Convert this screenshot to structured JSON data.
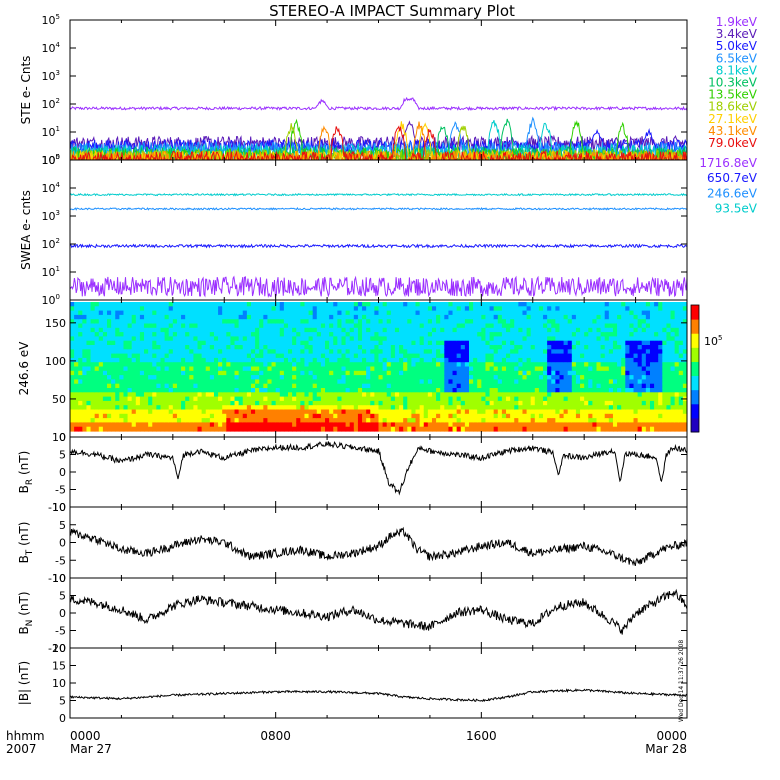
{
  "chart_data": {
    "type": "line",
    "title": "STEREO-A IMPACT Summary Plot",
    "x_axis": {
      "range_hours": [
        0,
        24
      ],
      "ticks": [
        {
          "hour": 0,
          "time": "0000",
          "date": "Mar 27"
        },
        {
          "hour": 8,
          "time": "0800",
          "date": ""
        },
        {
          "hour": 16,
          "time": "1600",
          "date": ""
        },
        {
          "hour": 24,
          "time": "0000",
          "date": "Mar 28"
        }
      ],
      "corner_label_top": "hhmm",
      "corner_label_bottom": "2007"
    },
    "side_stamp": "Wed Dec 14 11:37:26 2008",
    "panels": [
      {
        "id": "ste",
        "type": "line",
        "ylabel": "STE e- Cnts",
        "yscale": "log",
        "ylim": [
          1,
          100000
        ],
        "yticks": [
          {
            "value": 1,
            "base": "10",
            "exp": "0"
          },
          {
            "value": 10,
            "base": "10",
            "exp": "1"
          },
          {
            "value": 100,
            "base": "10",
            "exp": "2"
          },
          {
            "value": 1000,
            "base": "10",
            "exp": "3"
          },
          {
            "value": 10000,
            "base": "10",
            "exp": "4"
          },
          {
            "value": 100000,
            "base": "10",
            "exp": "5"
          }
        ],
        "series": [
          {
            "name": "1.9keV",
            "color": "#9b30ff",
            "level": 70,
            "noise": 0.05,
            "spikes": [
              [
                9.8,
                90
              ],
              [
                13.1,
                140
              ],
              [
                13.3,
                120
              ]
            ]
          },
          {
            "name": "3.4keV",
            "color": "#5a1ab8",
            "level": 4,
            "noise": 0.25,
            "spikes": [
              [
                13.2,
                25
              ]
            ]
          },
          {
            "name": "5.0keV",
            "color": "#1a1aff",
            "level": 3,
            "noise": 0.25,
            "spikes": [
              [
                20.5,
                12
              ],
              [
                22.5,
                10
              ]
            ]
          },
          {
            "name": "6.5keV",
            "color": "#1e90ff",
            "level": 2.2,
            "noise": 0.3,
            "spikes": [
              [
                15.0,
                25
              ],
              [
                18.0,
                30
              ]
            ]
          },
          {
            "name": "8.1keV",
            "color": "#00cccc",
            "level": 1.8,
            "noise": 0.3,
            "spikes": [
              [
                16.5,
                30
              ],
              [
                18.5,
                25
              ]
            ]
          },
          {
            "name": "10.3keV",
            "color": "#00c060",
            "level": 1.5,
            "noise": 0.3,
            "spikes": [
              [
                14.5,
                20
              ],
              [
                17.0,
                30
              ]
            ]
          },
          {
            "name": "13.5keV",
            "color": "#30d000",
            "level": 1.3,
            "noise": 0.3,
            "spikes": [
              [
                8.8,
                30
              ],
              [
                19.7,
                30
              ],
              [
                21.5,
                20
              ]
            ]
          },
          {
            "name": "18.6keV",
            "color": "#a0d000",
            "level": 1.2,
            "noise": 0.3,
            "spikes": [
              [
                8.6,
                20
              ],
              [
                15.3,
                20
              ]
            ]
          },
          {
            "name": "27.1keV",
            "color": "#ffd000",
            "level": 1.1,
            "noise": 0.3,
            "spikes": [
              [
                12.9,
                25
              ],
              [
                13.8,
                30
              ]
            ]
          },
          {
            "name": "43.1keV",
            "color": "#ff8c00",
            "level": 1.05,
            "noise": 0.3,
            "spikes": [
              [
                9.9,
                20
              ],
              [
                13.6,
                25
              ]
            ]
          },
          {
            "name": "79.0keV",
            "color": "#e81010",
            "level": 1.02,
            "noise": 0.3,
            "spikes": [
              [
                10.4,
                20
              ],
              [
                12.8,
                20
              ],
              [
                14.0,
                15
              ]
            ]
          }
        ]
      },
      {
        "id": "swea",
        "type": "line",
        "ylabel": "SWEA e- cnts",
        "yscale": "log",
        "ylim": [
          1,
          100000
        ],
        "yticks": [
          {
            "value": 1,
            "base": "10",
            "exp": "0"
          },
          {
            "value": 10,
            "base": "10",
            "exp": "1"
          },
          {
            "value": 100,
            "base": "10",
            "exp": "2"
          },
          {
            "value": 1000,
            "base": "10",
            "exp": "3"
          },
          {
            "value": 10000,
            "base": "10",
            "exp": "4"
          },
          {
            "value": 100000,
            "base": "10",
            "exp": "5"
          }
        ],
        "series": [
          {
            "name": "1716.8eV",
            "color": "#9b30ff",
            "level": 3,
            "noise": 0.35,
            "spikes": []
          },
          {
            "name": "650.7eV",
            "color": "#1a1aff",
            "level": 85,
            "noise": 0.05,
            "spikes": []
          },
          {
            "name": "246.6eV",
            "color": "#1e90ff",
            "level": 1800,
            "noise": 0.03,
            "spikes": []
          },
          {
            "name": "93.5eV",
            "color": "#00cccc",
            "level": 5800,
            "noise": 0.03,
            "spikes": []
          }
        ]
      },
      {
        "id": "pad",
        "type": "heatmap",
        "ylabel": "246.6 eV",
        "ylim": [
          0,
          180
        ],
        "yticks": [
          0,
          50,
          100,
          150
        ],
        "colorbar_label_base": "10",
        "colorbar_label_exp": "5",
        "colormap": [
          "#2000c0",
          "#0000ff",
          "#0080ff",
          "#00e0ff",
          "#00ff80",
          "#a0ff00",
          "#ffff00",
          "#ff8000",
          "#ff0000"
        ]
      },
      {
        "id": "br",
        "type": "line",
        "ylabel_base": "B",
        "ylabel_sub": "R",
        "ylabel_unit": " (nT)",
        "ylim": [
          -10,
          10
        ],
        "yticks": [
          -10,
          -5,
          0,
          5,
          10
        ],
        "profile": [
          [
            0,
            6
          ],
          [
            1,
            5
          ],
          [
            2,
            3
          ],
          [
            3,
            5
          ],
          [
            4,
            4
          ],
          [
            5,
            6
          ],
          [
            6,
            4
          ],
          [
            7,
            6
          ],
          [
            8,
            7
          ],
          [
            9,
            7
          ],
          [
            10,
            8
          ],
          [
            11,
            7
          ],
          [
            12,
            6
          ],
          [
            12.4,
            -3
          ],
          [
            12.8,
            -6
          ],
          [
            13.2,
            2
          ],
          [
            13.6,
            7
          ],
          [
            14,
            6
          ],
          [
            15,
            5
          ],
          [
            16,
            4
          ],
          [
            17,
            6
          ],
          [
            18,
            7
          ],
          [
            19,
            5
          ],
          [
            20,
            4
          ],
          [
            21,
            6
          ],
          [
            22,
            5
          ],
          [
            23,
            4
          ],
          [
            23.5,
            7
          ],
          [
            24,
            6
          ]
        ],
        "dips": [
          [
            4.2,
            -2
          ],
          [
            19.0,
            -1
          ],
          [
            21.4,
            -3
          ],
          [
            23.0,
            -3
          ]
        ],
        "noise": 0.8
      },
      {
        "id": "bt",
        "type": "line",
        "ylabel_base": "B",
        "ylabel_sub": "T",
        "ylabel_unit": " (nT)",
        "ylim": [
          -10,
          10
        ],
        "yticks": [
          -10,
          -5,
          0,
          5,
          10
        ],
        "profile": [
          [
            0,
            3
          ],
          [
            1,
            1
          ],
          [
            2,
            -2
          ],
          [
            3,
            -3
          ],
          [
            4,
            -1
          ],
          [
            5,
            1
          ],
          [
            6,
            0
          ],
          [
            7,
            -4
          ],
          [
            8,
            -3
          ],
          [
            9,
            -2
          ],
          [
            10,
            -4
          ],
          [
            11,
            -3
          ],
          [
            12,
            -1
          ],
          [
            12.5,
            2
          ],
          [
            13,
            3
          ],
          [
            13.5,
            -2
          ],
          [
            14,
            -4
          ],
          [
            15,
            -3
          ],
          [
            16,
            -1
          ],
          [
            17,
            0
          ],
          [
            18,
            -3
          ],
          [
            19,
            -2
          ],
          [
            20,
            -1
          ],
          [
            21,
            -3
          ],
          [
            22,
            -6
          ],
          [
            23,
            -2
          ],
          [
            24,
            0
          ]
        ],
        "dips": [],
        "noise": 1.2
      },
      {
        "id": "bn",
        "type": "line",
        "ylabel_base": "B",
        "ylabel_sub": "N",
        "ylabel_unit": " (nT)",
        "ylim": [
          -10,
          10
        ],
        "yticks": [
          -10,
          -5,
          0,
          5,
          10
        ],
        "profile": [
          [
            0,
            4
          ],
          [
            1,
            3
          ],
          [
            2,
            1
          ],
          [
            3,
            -2
          ],
          [
            4,
            2
          ],
          [
            5,
            4
          ],
          [
            6,
            3
          ],
          [
            7,
            2
          ],
          [
            8,
            1
          ],
          [
            9,
            0
          ],
          [
            10,
            -1
          ],
          [
            11,
            1
          ],
          [
            12,
            -2
          ],
          [
            13,
            -3
          ],
          [
            14,
            -4
          ],
          [
            15,
            0
          ],
          [
            16,
            1
          ],
          [
            17,
            -2
          ],
          [
            18,
            -3
          ],
          [
            19,
            2
          ],
          [
            20,
            3
          ],
          [
            21,
            -2
          ],
          [
            21.5,
            -5
          ],
          [
            22,
            0
          ],
          [
            23,
            4
          ],
          [
            23.5,
            6
          ],
          [
            24,
            2
          ]
        ],
        "dips": [],
        "noise": 1.3
      },
      {
        "id": "bmag",
        "type": "line",
        "ylabel_base": "|B|",
        "ylabel_sub": "",
        "ylabel_unit": " (nT)",
        "ylim": [
          0,
          20
        ],
        "yticks": [
          0,
          5,
          10,
          15,
          20
        ],
        "profile": [
          [
            0,
            6
          ],
          [
            2,
            5.5
          ],
          [
            4,
            6.5
          ],
          [
            6,
            7
          ],
          [
            8,
            7.5
          ],
          [
            10,
            7.5
          ],
          [
            12,
            7
          ],
          [
            13,
            6
          ],
          [
            14,
            5.5
          ],
          [
            16,
            5
          ],
          [
            17,
            6
          ],
          [
            18,
            7.5
          ],
          [
            20,
            8
          ],
          [
            22,
            7
          ],
          [
            24,
            6.5
          ]
        ],
        "dips": [],
        "noise": 0.3
      }
    ]
  }
}
